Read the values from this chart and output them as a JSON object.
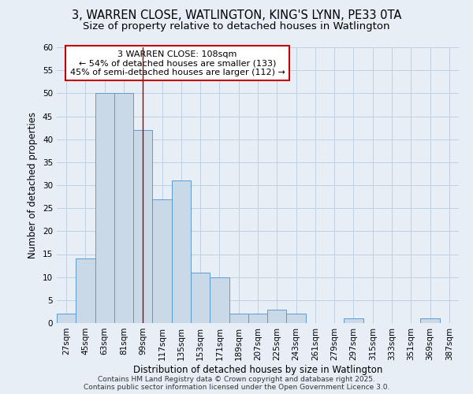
{
  "title1": "3, WARREN CLOSE, WATLINGTON, KING'S LYNN, PE33 0TA",
  "title2": "Size of property relative to detached houses in Watlington",
  "xlabel": "Distribution of detached houses by size in Watlington",
  "ylabel": "Number of detached properties",
  "bins": [
    27,
    45,
    63,
    81,
    99,
    117,
    135,
    153,
    171,
    189,
    207,
    225,
    243,
    261,
    279,
    297,
    315,
    333,
    351,
    369,
    387
  ],
  "counts": [
    2,
    14,
    50,
    50,
    42,
    27,
    31,
    11,
    10,
    2,
    2,
    3,
    2,
    0,
    0,
    1,
    0,
    0,
    0,
    1
  ],
  "bar_color": "#c9d9e8",
  "bar_edge_color": "#5b9bd5",
  "ref_line_x": 108,
  "ref_line_color": "#a00000",
  "annotation_text": "3 WARREN CLOSE: 108sqm\n← 54% of detached houses are smaller (133)\n45% of semi-detached houses are larger (112) →",
  "annotation_box_color": "#c00000",
  "annotation_text_color": "#000000",
  "ylim": [
    0,
    60
  ],
  "yticks": [
    0,
    5,
    10,
    15,
    20,
    25,
    30,
    35,
    40,
    45,
    50,
    55,
    60
  ],
  "grid_color": "#c0d0e0",
  "background_color": "#e8eef5",
  "footer_text": "Contains HM Land Registry data © Crown copyright and database right 2025.\nContains public sector information licensed under the Open Government Licence 3.0.",
  "title_fontsize": 10.5,
  "subtitle_fontsize": 9.5,
  "axis_label_fontsize": 8.5,
  "tick_fontsize": 7.5,
  "footer_fontsize": 6.5,
  "annotation_fontsize": 8
}
